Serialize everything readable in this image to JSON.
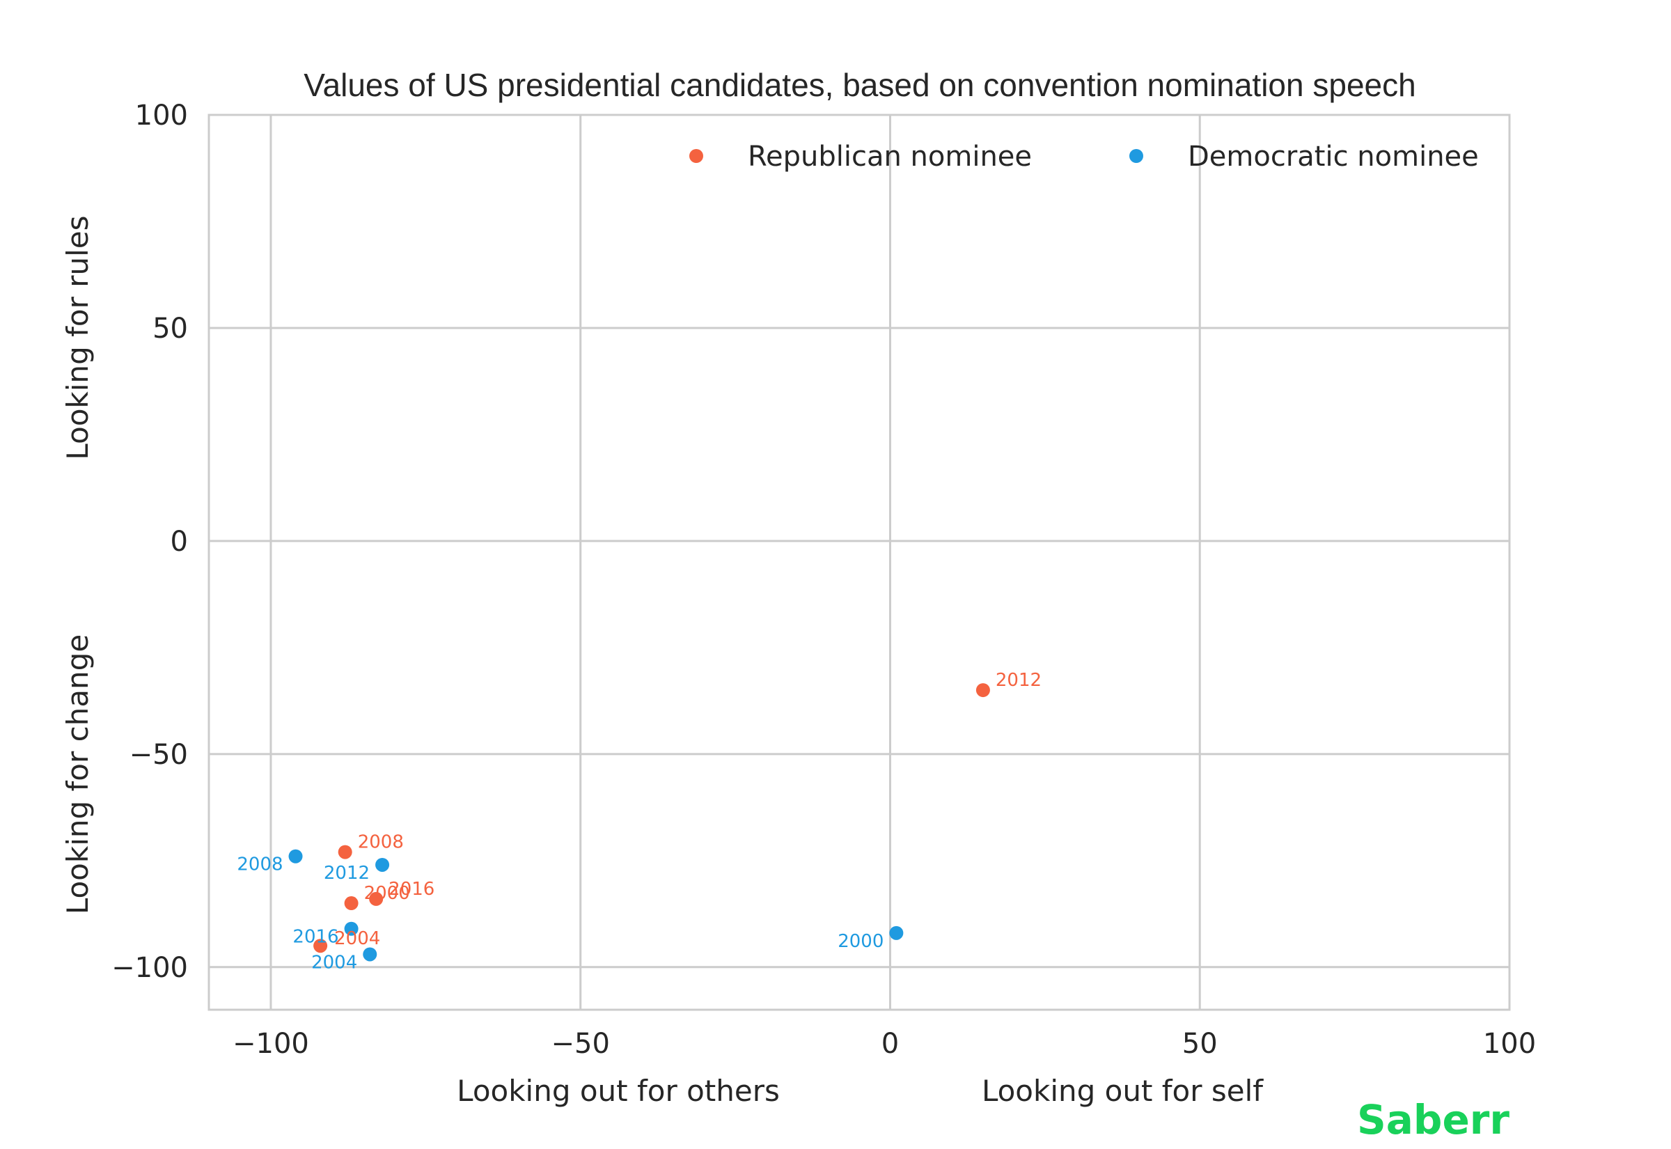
{
  "chart_data": {
    "type": "scatter",
    "title": "Values of US presidential candidates, based on convention nomination speech",
    "xlim": [
      -110,
      100
    ],
    "ylim": [
      -110,
      100
    ],
    "x_ticks": [
      -100,
      -50,
      0,
      50,
      100
    ],
    "y_ticks": [
      -100,
      -50,
      0,
      50,
      100
    ],
    "x_tick_labels": [
      "−100",
      "−50",
      "0",
      "50",
      "100"
    ],
    "y_tick_labels": [
      "−100",
      "−50",
      "0",
      "50",
      "100"
    ],
    "xlabel_left": "Looking out for others",
    "xlabel_right": "Looking out for self",
    "ylabel_top": "Looking for rules",
    "ylabel_bottom": "Looking for change",
    "grid": true,
    "legend_position": "top-right",
    "series": [
      {
        "name": "Republican nominee",
        "color": "#f4623f",
        "points": [
          {
            "x": 15,
            "y": -35,
            "label": "2012"
          },
          {
            "x": -88,
            "y": -73,
            "label": "2008"
          },
          {
            "x": -87,
            "y": -85,
            "label": "2000"
          },
          {
            "x": -83,
            "y": -84,
            "label": "2016"
          },
          {
            "x": -92,
            "y": -95,
            "label": "2004"
          }
        ]
      },
      {
        "name": "Democratic nominee",
        "color": "#1f9ae0",
        "points": [
          {
            "x": 1,
            "y": -92,
            "label": "2000"
          },
          {
            "x": -96,
            "y": -74,
            "label": "2008"
          },
          {
            "x": -82,
            "y": -76,
            "label": "2012"
          },
          {
            "x": -87,
            "y": -91,
            "label": "2016"
          },
          {
            "x": -84,
            "y": -97,
            "label": "2004"
          }
        ]
      }
    ]
  },
  "branding": {
    "text": "Saberr",
    "color": "#19d15a"
  }
}
